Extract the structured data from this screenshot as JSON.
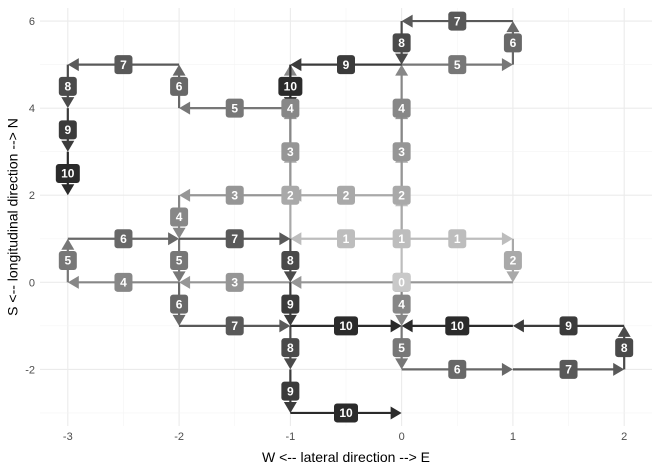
{
  "chart_data": {
    "type": "path-diagram",
    "xlabel": "W <--  lateral direction  --> E",
    "ylabel": "S <--  longitudinal direction  --> N",
    "xlim": [
      -3.25,
      2.25
    ],
    "ylim": [
      -3.3,
      6.3
    ],
    "x_ticks": [
      -3,
      -2,
      -1,
      0,
      1,
      2
    ],
    "y_ticks": [
      -2,
      0,
      2,
      4,
      6
    ],
    "x_tick_labels": [
      "-3",
      "-2",
      "-1",
      "0",
      "1",
      "2"
    ],
    "y_tick_labels": [
      "-2",
      "0",
      "2",
      "4",
      "6"
    ],
    "grid": true,
    "origin": {
      "label": "0",
      "x": 0,
      "y": 0
    },
    "step_colors": [
      "#bdbdbd",
      "#a9a9a9",
      "#969696",
      "#878787",
      "#777777",
      "#686868",
      "#595959",
      "#4a4a4a",
      "#3b3b3b",
      "#2b2b2b"
    ],
    "segments": [
      {
        "step": 1,
        "x": [
          0,
          0
        ],
        "y": [
          0,
          2
        ],
        "label": "1"
      },
      {
        "step": 1,
        "x": [
          0,
          -1
        ],
        "y": [
          1,
          1
        ],
        "label": "1"
      },
      {
        "step": 1,
        "x": [
          0,
          1
        ],
        "y": [
          1,
          1
        ],
        "label": "1"
      },
      {
        "step": 2,
        "x": [
          1,
          1
        ],
        "y": [
          1,
          0
        ],
        "label": "2"
      },
      {
        "step": 2,
        "x": [
          0,
          0
        ],
        "y": [
          1,
          3
        ],
        "label": "2"
      },
      {
        "step": 2,
        "x": [
          0,
          -1
        ],
        "y": [
          2,
          2
        ],
        "label": "2"
      },
      {
        "step": 2,
        "x": [
          -1,
          -1
        ],
        "y": [
          1,
          3
        ],
        "label": "2"
      },
      {
        "step": 3,
        "x": [
          1,
          -1
        ],
        "y": [
          0,
          0
        ],
        "label": "3"
      },
      {
        "step": 3,
        "x": [
          -1,
          -2
        ],
        "y": [
          2,
          2
        ],
        "label": "3"
      },
      {
        "step": 3,
        "x": [
          -1,
          -1
        ],
        "y": [
          2,
          4
        ],
        "label": "3"
      },
      {
        "step": 3,
        "x": [
          0,
          0
        ],
        "y": [
          2,
          4
        ],
        "label": "3"
      },
      {
        "step": 3,
        "x": [
          -1,
          -2
        ],
        "y": [
          0,
          0
        ],
        "label": "3"
      },
      {
        "step": 4,
        "x": [
          -2,
          -2
        ],
        "y": [
          2,
          1
        ],
        "label": "4"
      },
      {
        "step": 4,
        "x": [
          -2,
          -3
        ],
        "y": [
          0,
          0
        ],
        "label": "4"
      },
      {
        "step": 4,
        "x": [
          0,
          0
        ],
        "y": [
          0,
          -1
        ],
        "label": "4"
      },
      {
        "step": 4,
        "x": [
          -1,
          -1
        ],
        "y": [
          3,
          5
        ],
        "label": "4"
      },
      {
        "step": 4,
        "x": [
          0,
          0
        ],
        "y": [
          3,
          5
        ],
        "label": "4"
      },
      {
        "step": 5,
        "x": [
          -2,
          -2
        ],
        "y": [
          1,
          0
        ],
        "label": "5"
      },
      {
        "step": 5,
        "x": [
          -3,
          -3
        ],
        "y": [
          0,
          1
        ],
        "label": "5"
      },
      {
        "step": 5,
        "x": [
          0,
          0
        ],
        "y": [
          -1,
          -2
        ],
        "label": "5"
      },
      {
        "step": 5,
        "x": [
          -1,
          -2
        ],
        "y": [
          4,
          4
        ],
        "label": "5"
      },
      {
        "step": 5,
        "x": [
          0,
          1
        ],
        "y": [
          5,
          5
        ],
        "label": "5"
      },
      {
        "step": 6,
        "x": [
          -2,
          -2
        ],
        "y": [
          0,
          -1
        ],
        "label": "6"
      },
      {
        "step": 6,
        "x": [
          -3,
          -2
        ],
        "y": [
          1,
          1
        ],
        "label": "6"
      },
      {
        "step": 6,
        "x": [
          0,
          1
        ],
        "y": [
          -2,
          -2
        ],
        "label": "6"
      },
      {
        "step": 6,
        "x": [
          -2,
          -2
        ],
        "y": [
          4,
          5
        ],
        "label": "6"
      },
      {
        "step": 6,
        "x": [
          1,
          1
        ],
        "y": [
          5,
          6
        ],
        "label": "6"
      },
      {
        "step": 7,
        "x": [
          -2,
          -1
        ],
        "y": [
          -1,
          -1
        ],
        "label": "7"
      },
      {
        "step": 7,
        "x": [
          -2,
          -1
        ],
        "y": [
          1,
          1
        ],
        "label": "7"
      },
      {
        "step": 7,
        "x": [
          1,
          2
        ],
        "y": [
          -2,
          -2
        ],
        "label": "7"
      },
      {
        "step": 7,
        "x": [
          -2,
          -3
        ],
        "y": [
          5,
          5
        ],
        "label": "7"
      },
      {
        "step": 7,
        "x": [
          1,
          0
        ],
        "y": [
          6,
          6
        ],
        "label": "7"
      },
      {
        "step": 8,
        "x": [
          -1,
          -1
        ],
        "y": [
          -1,
          -2
        ],
        "label": "8"
      },
      {
        "step": 8,
        "x": [
          -1,
          -1
        ],
        "y": [
          1,
          0
        ],
        "label": "8"
      },
      {
        "step": 8,
        "x": [
          2,
          2
        ],
        "y": [
          -2,
          -1
        ],
        "label": "8"
      },
      {
        "step": 8,
        "x": [
          -3,
          -3
        ],
        "y": [
          5,
          4
        ],
        "label": "8"
      },
      {
        "step": 8,
        "x": [
          0,
          0
        ],
        "y": [
          6,
          5
        ],
        "label": "8"
      },
      {
        "step": 9,
        "x": [
          -1,
          -1
        ],
        "y": [
          -2,
          -3
        ],
        "label": "9"
      },
      {
        "step": 9,
        "x": [
          -1,
          -1
        ],
        "y": [
          0,
          -1
        ],
        "label": "9"
      },
      {
        "step": 9,
        "x": [
          2,
          1
        ],
        "y": [
          -1,
          -1
        ],
        "label": "9"
      },
      {
        "step": 9,
        "x": [
          -3,
          -3
        ],
        "y": [
          4,
          3
        ],
        "label": "9"
      },
      {
        "step": 9,
        "x": [
          0,
          -1
        ],
        "y": [
          5,
          5
        ],
        "label": "9"
      },
      {
        "step": 10,
        "x": [
          -1,
          0
        ],
        "y": [
          -3,
          -3
        ],
        "label": "10"
      },
      {
        "step": 10,
        "x": [
          -1,
          0
        ],
        "y": [
          -1,
          -1
        ],
        "label": "10"
      },
      {
        "step": 10,
        "x": [
          1,
          0
        ],
        "y": [
          -1,
          -1
        ],
        "label": "10"
      },
      {
        "step": 10,
        "x": [
          -3,
          -3
        ],
        "y": [
          3,
          2
        ],
        "label": "10"
      },
      {
        "step": 10,
        "x": [
          -1,
          -1
        ],
        "y": [
          5,
          4
        ],
        "label": "10"
      }
    ]
  }
}
